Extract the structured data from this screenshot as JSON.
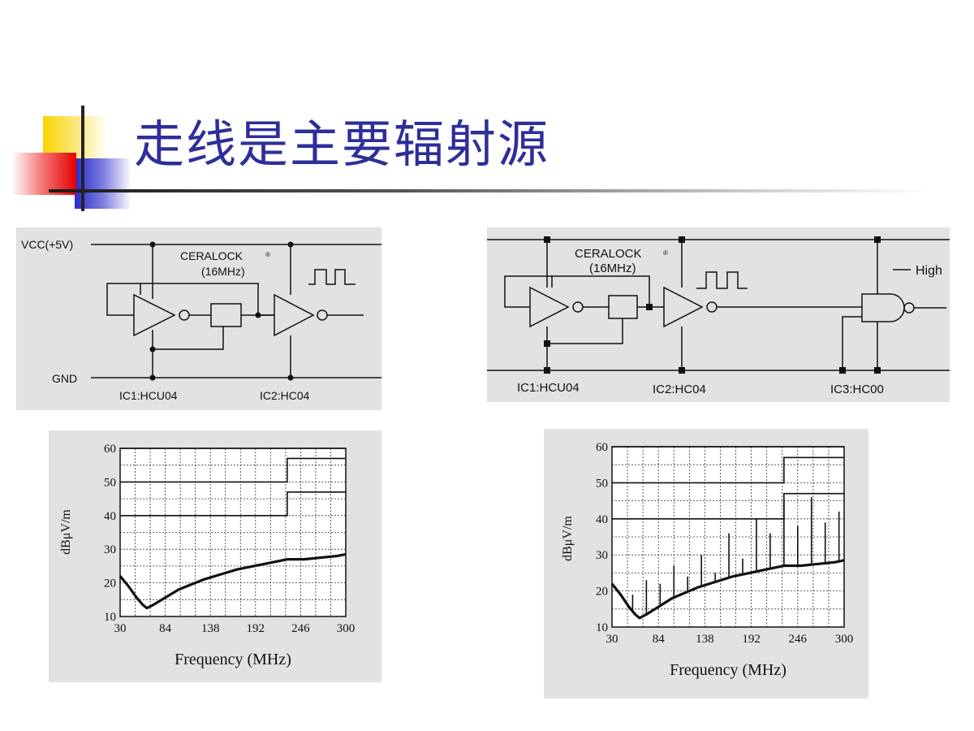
{
  "slide": {
    "title": "走线是主要辐射源"
  },
  "circuit_left": {
    "vcc": "VCC(+5V)",
    "gnd": "GND",
    "resonator": "CERALOCK",
    "reg_mark": "®",
    "freq": "(16MHz)",
    "ic1": "IC1:HCU04",
    "ic2": "IC2:HC04"
  },
  "circuit_right": {
    "resonator": "CERALOCK",
    "reg_mark": "®",
    "freq": "(16MHz)",
    "high": "High",
    "ic1": "IC1:HCU04",
    "ic2": "IC2:HC04",
    "ic3": "IC3:HC00"
  },
  "chart_data": [
    {
      "type": "line",
      "xlabel": "Frequency (MHz)",
      "ylabel": "dBμV/m",
      "xlim": [
        30,
        300
      ],
      "ylim": [
        10,
        60
      ],
      "x_ticks": [
        "30",
        "84",
        "138",
        "192",
        "246",
        "300"
      ],
      "y_ticks": [
        "60",
        "50",
        "40",
        "30",
        "20",
        "10"
      ],
      "grid": true,
      "limit_lines": [
        {
          "x": [
            30,
            230,
            230,
            300
          ],
          "y": [
            50,
            50,
            57,
            57
          ]
        },
        {
          "x": [
            30,
            230,
            230,
            300
          ],
          "y": [
            40,
            40,
            47,
            47
          ]
        },
        {
          "x": [
            30,
            300
          ],
          "y": [
            60,
            60
          ]
        }
      ],
      "series": [
        {
          "x": [
            30,
            40,
            50,
            57,
            62,
            70,
            80,
            90,
            100,
            115,
            130,
            150,
            170,
            190,
            210,
            230,
            250,
            270,
            290,
            300
          ],
          "values": [
            22,
            19,
            15.5,
            13.5,
            12.5,
            13.5,
            15,
            16.5,
            18,
            19.5,
            21,
            22.5,
            24,
            25,
            26,
            27,
            27,
            27.5,
            28,
            28.5
          ]
        }
      ]
    },
    {
      "type": "line",
      "xlabel": "Frequency (MHz)",
      "ylabel": "dBμV/m",
      "xlim": [
        30,
        300
      ],
      "ylim": [
        10,
        60
      ],
      "x_ticks": [
        "30",
        "84",
        "138",
        "192",
        "246",
        "300"
      ],
      "y_ticks": [
        "60",
        "50",
        "40",
        "30",
        "20",
        "10"
      ],
      "grid": true,
      "limit_lines": [
        {
          "x": [
            30,
            230,
            230,
            300
          ],
          "y": [
            50,
            50,
            57,
            57
          ]
        },
        {
          "x": [
            30,
            230,
            230,
            300
          ],
          "y": [
            40,
            40,
            47,
            47
          ]
        },
        {
          "x": [
            30,
            300
          ],
          "y": [
            60,
            60
          ]
        }
      ],
      "series": [
        {
          "x": [
            30,
            40,
            50,
            57,
            62,
            70,
            80,
            90,
            100,
            115,
            130,
            150,
            170,
            190,
            210,
            230,
            250,
            270,
            290,
            300
          ],
          "values": [
            22,
            19,
            15.5,
            13.5,
            12.5,
            13.5,
            15,
            16.5,
            18,
            19.5,
            21,
            22.5,
            24,
            25,
            26,
            27,
            27,
            27.5,
            28,
            28.5
          ]
        }
      ],
      "spikes": {
        "x": [
          54,
          70,
          86,
          102,
          118,
          134,
          150,
          166,
          182,
          198,
          214,
          230,
          246,
          262,
          278,
          294
        ],
        "values": [
          19,
          23,
          22,
          27,
          24,
          30,
          25,
          36,
          29,
          40,
          36,
          45,
          38,
          46,
          39,
          42
        ]
      }
    }
  ]
}
